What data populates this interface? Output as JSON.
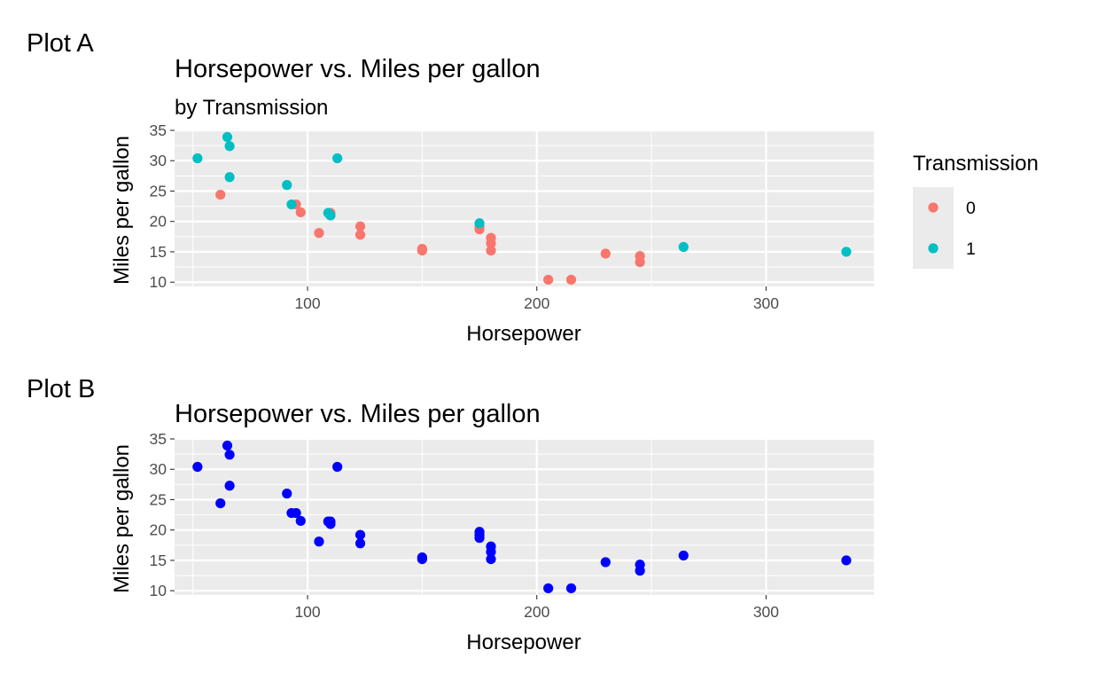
{
  "chart_data": [
    {
      "type": "scatter",
      "tag": "Plot A",
      "title": "Horsepower vs. Miles per gallon",
      "subtitle": "by Transmission",
      "xlabel": "Horsepower",
      "ylabel": "Miles per gallon",
      "xlim": [
        42,
        347
      ],
      "ylim": [
        9.3,
        35.0
      ],
      "xticks": [
        100,
        200,
        300
      ],
      "yticks": [
        10,
        15,
        20,
        25,
        30,
        35
      ],
      "grid": true,
      "legend": {
        "title": "Transmission",
        "placement": "right",
        "entries": [
          {
            "label": "0",
            "color": "#F8766D"
          },
          {
            "label": "1",
            "color": "#00BFC4"
          }
        ]
      },
      "series": [
        {
          "name": "0",
          "color": "#F8766D",
          "points": [
            [
              110,
              21.4
            ],
            [
              175,
              18.7
            ],
            [
              105,
              18.1
            ],
            [
              245,
              14.3
            ],
            [
              62,
              24.4
            ],
            [
              95,
              22.8
            ],
            [
              123,
              19.2
            ],
            [
              123,
              17.8
            ],
            [
              180,
              16.4
            ],
            [
              180,
              17.3
            ],
            [
              180,
              15.2
            ],
            [
              205,
              10.4
            ],
            [
              215,
              10.4
            ],
            [
              230,
              14.7
            ],
            [
              97,
              21.5
            ],
            [
              150,
              15.5
            ],
            [
              150,
              15.2
            ],
            [
              245,
              13.3
            ],
            [
              175,
              19.2
            ]
          ]
        },
        {
          "name": "1",
          "color": "#00BFC4",
          "points": [
            [
              110,
              21.0
            ],
            [
              110,
              21.0
            ],
            [
              93,
              22.8
            ],
            [
              66,
              32.4
            ],
            [
              52,
              30.4
            ],
            [
              65,
              33.9
            ],
            [
              66,
              27.3
            ],
            [
              91,
              26.0
            ],
            [
              113,
              30.4
            ],
            [
              264,
              15.8
            ],
            [
              175,
              19.7
            ],
            [
              335,
              15.0
            ],
            [
              109,
              21.4
            ]
          ]
        }
      ]
    },
    {
      "type": "scatter",
      "tag": "Plot B",
      "title": "Horsepower vs. Miles per gallon",
      "xlabel": "Horsepower",
      "ylabel": "Miles per gallon",
      "xlim": [
        42,
        347
      ],
      "ylim": [
        9.3,
        35.0
      ],
      "xticks": [
        100,
        200,
        300
      ],
      "yticks": [
        10,
        15,
        20,
        25,
        30,
        35
      ],
      "grid": true,
      "series": [
        {
          "color": "#0000FF",
          "points": [
            [
              110,
              21.0
            ],
            [
              110,
              21.0
            ],
            [
              93,
              22.8
            ],
            [
              110,
              21.4
            ],
            [
              175,
              18.7
            ],
            [
              105,
              18.1
            ],
            [
              245,
              14.3
            ],
            [
              62,
              24.4
            ],
            [
              95,
              22.8
            ],
            [
              123,
              19.2
            ],
            [
              123,
              17.8
            ],
            [
              180,
              16.4
            ],
            [
              180,
              17.3
            ],
            [
              180,
              15.2
            ],
            [
              205,
              10.4
            ],
            [
              215,
              10.4
            ],
            [
              230,
              14.7
            ],
            [
              66,
              32.4
            ],
            [
              52,
              30.4
            ],
            [
              65,
              33.9
            ],
            [
              97,
              21.5
            ],
            [
              150,
              15.5
            ],
            [
              150,
              15.2
            ],
            [
              245,
              13.3
            ],
            [
              175,
              19.2
            ],
            [
              66,
              27.3
            ],
            [
              91,
              26.0
            ],
            [
              113,
              30.4
            ],
            [
              264,
              15.8
            ],
            [
              175,
              19.7
            ],
            [
              335,
              15.0
            ],
            [
              109,
              21.4
            ]
          ]
        }
      ]
    }
  ]
}
